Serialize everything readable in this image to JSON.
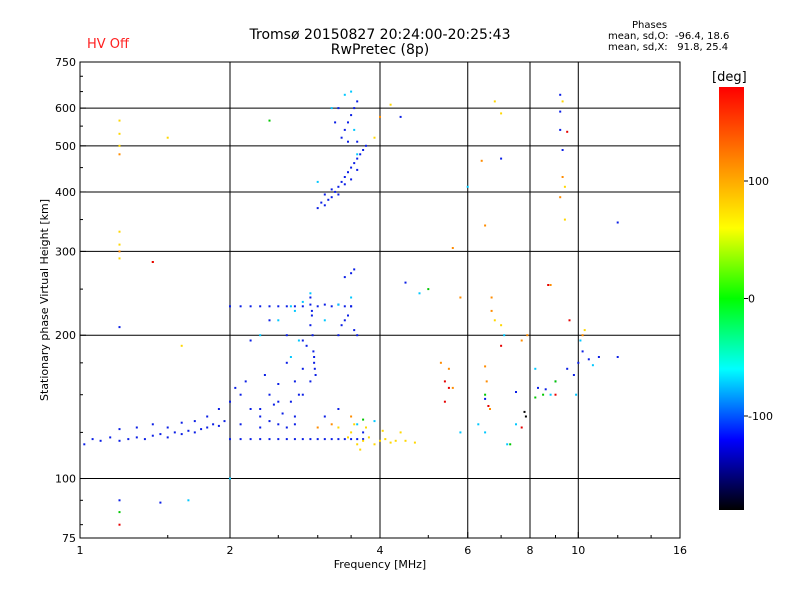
{
  "header": {
    "title_line1": "Tromsø 20150827 20:24:00-20:25:43",
    "title_line2": "RwPretec (8p)",
    "status": "HV Off",
    "status_color": "#ff2020"
  },
  "phases_box": {
    "heading": "Phases",
    "line_o": "mean, sd,O:  -96.4, 18.6",
    "line_x": "mean, sd,X:   91.8, 25.4"
  },
  "colorbar": {
    "unit": "[deg]",
    "ticks": [
      "100",
      "0",
      "-100"
    ],
    "tick_values": [
      100,
      0,
      -100
    ],
    "range": [
      -180,
      180
    ],
    "colors": [
      "#ff0000",
      "#ff8000",
      "#ffff00",
      "#00ff00",
      "#00ffff",
      "#0000ff",
      "#000000"
    ]
  },
  "chart_data": {
    "type": "scatter",
    "title": "Tromsø 20150827 20:24:00-20:25:43",
    "subtitle": "RwPretec (8p)",
    "xlabel": "Frequency [MHz]",
    "ylabel": "Stationary phase Virtual Height [km]",
    "x_scale": "log",
    "y_scale": "log",
    "xlim": [
      1,
      16
    ],
    "ylim": [
      75,
      750
    ],
    "x_ticks": [
      1,
      2,
      4,
      6,
      8,
      10,
      16
    ],
    "x_tick_labels": [
      "1",
      "2",
      "4",
      "6",
      "8",
      "10",
      "16"
    ],
    "y_ticks": [
      75,
      100,
      200,
      300,
      400,
      500,
      600,
      750
    ],
    "y_tick_labels": [
      "75",
      "100",
      "200",
      "300",
      "400",
      "500",
      "600",
      "750"
    ],
    "grid": true,
    "series": [
      {
        "color": "#0a1ee6",
        "points": [
          [
            1.02,
            118
          ],
          [
            1.06,
            121
          ],
          [
            1.1,
            120
          ],
          [
            1.15,
            122
          ],
          [
            1.2,
            120
          ],
          [
            1.25,
            121
          ],
          [
            1.3,
            122
          ],
          [
            1.35,
            121
          ],
          [
            1.4,
            123
          ],
          [
            1.45,
            124
          ],
          [
            1.5,
            122
          ],
          [
            1.55,
            125
          ],
          [
            1.6,
            124
          ],
          [
            1.65,
            126
          ],
          [
            1.7,
            125
          ],
          [
            1.75,
            127
          ],
          [
            1.8,
            128
          ],
          [
            1.85,
            130
          ],
          [
            1.9,
            129
          ],
          [
            1.95,
            132
          ],
          [
            2.0,
            121
          ],
          [
            2.1,
            121
          ],
          [
            2.2,
            121
          ],
          [
            2.3,
            121
          ],
          [
            2.4,
            121
          ],
          [
            2.5,
            121
          ],
          [
            2.6,
            121
          ],
          [
            2.7,
            121
          ],
          [
            2.8,
            121
          ],
          [
            2.9,
            121
          ],
          [
            3.0,
            121
          ],
          [
            3.1,
            121
          ],
          [
            3.2,
            121
          ],
          [
            3.3,
            121
          ],
          [
            3.4,
            121
          ],
          [
            3.5,
            121
          ],
          [
            3.6,
            121
          ],
          [
            3.7,
            121
          ],
          [
            1.2,
            127
          ],
          [
            1.3,
            128
          ],
          [
            1.4,
            130
          ],
          [
            1.5,
            128
          ],
          [
            1.6,
            131
          ],
          [
            1.7,
            132
          ],
          [
            1.8,
            135
          ],
          [
            1.9,
            140
          ],
          [
            2.0,
            145
          ],
          [
            2.05,
            155
          ],
          [
            2.1,
            150
          ],
          [
            2.15,
            160
          ],
          [
            2.2,
            140
          ],
          [
            2.3,
            135
          ],
          [
            2.35,
            165
          ],
          [
            2.4,
            150
          ],
          [
            2.45,
            143
          ],
          [
            2.5,
            158
          ],
          [
            2.55,
            137
          ],
          [
            2.6,
            175
          ],
          [
            2.65,
            145
          ],
          [
            2.7,
            160
          ],
          [
            2.75,
            150
          ],
          [
            2.8,
            170
          ],
          [
            2.85,
            190
          ],
          [
            2.9,
            210
          ],
          [
            2.92,
            225
          ],
          [
            2.95,
            180
          ],
          [
            2.97,
            165
          ],
          [
            2.8,
            150
          ],
          [
            2.7,
            135
          ],
          [
            2.6,
            128
          ],
          [
            2.5,
            130
          ],
          [
            2.4,
            132
          ],
          [
            2.3,
            128
          ],
          [
            2.0,
            230
          ],
          [
            2.1,
            230
          ],
          [
            2.2,
            230
          ],
          [
            2.3,
            230
          ],
          [
            2.4,
            230
          ],
          [
            2.5,
            230
          ],
          [
            2.6,
            230
          ],
          [
            2.7,
            230
          ],
          [
            2.8,
            230
          ],
          [
            2.9,
            232
          ],
          [
            3.0,
            230
          ],
          [
            3.1,
            232
          ],
          [
            3.2,
            230
          ],
          [
            3.3,
            232
          ],
          [
            3.4,
            230
          ],
          [
            3.5,
            230
          ],
          [
            2.9,
            240
          ],
          [
            2.92,
            220
          ],
          [
            2.93,
            200
          ],
          [
            2.94,
            185
          ],
          [
            2.95,
            175
          ],
          [
            2.96,
            170
          ],
          [
            2.9,
            160
          ],
          [
            3.3,
            200
          ],
          [
            3.35,
            210
          ],
          [
            3.4,
            215
          ],
          [
            3.45,
            220
          ],
          [
            3.5,
            230
          ],
          [
            3.55,
            205
          ],
          [
            3.6,
            200
          ],
          [
            3.4,
            265
          ],
          [
            3.5,
            270
          ],
          [
            3.55,
            275
          ],
          [
            3.0,
            370
          ],
          [
            3.05,
            380
          ],
          [
            3.1,
            375
          ],
          [
            3.15,
            385
          ],
          [
            3.2,
            390
          ],
          [
            3.25,
            400
          ],
          [
            3.3,
            410
          ],
          [
            3.35,
            420
          ],
          [
            3.4,
            430
          ],
          [
            3.45,
            440
          ],
          [
            3.5,
            450
          ],
          [
            3.55,
            460
          ],
          [
            3.6,
            470
          ],
          [
            3.65,
            480
          ],
          [
            3.7,
            490
          ],
          [
            3.75,
            500
          ],
          [
            3.1,
            395
          ],
          [
            3.2,
            405
          ],
          [
            3.3,
            395
          ],
          [
            3.4,
            415
          ],
          [
            3.5,
            425
          ],
          [
            3.6,
            445
          ],
          [
            3.35,
            520
          ],
          [
            3.4,
            540
          ],
          [
            3.45,
            560
          ],
          [
            3.5,
            580
          ],
          [
            3.55,
            600
          ],
          [
            3.6,
            620
          ],
          [
            3.25,
            560
          ],
          [
            3.3,
            600
          ],
          [
            3.45,
            510
          ],
          [
            3.6,
            510
          ],
          [
            4.4,
            575
          ],
          [
            4.5,
            258
          ],
          [
            7.0,
            470
          ],
          [
            9.2,
            640
          ],
          [
            9.2,
            590
          ],
          [
            9.2,
            540
          ],
          [
            9.3,
            490
          ],
          [
            12.0,
            345
          ],
          [
            1.2,
            208
          ],
          [
            1.2,
            90
          ],
          [
            1.45,
            89
          ],
          [
            6.5,
            147
          ],
          [
            7.5,
            152
          ],
          [
            8.3,
            155
          ],
          [
            8.6,
            154
          ],
          [
            9.0,
            160
          ],
          [
            9.5,
            170
          ],
          [
            10.0,
            175
          ],
          [
            10.5,
            178
          ],
          [
            11.0,
            180
          ],
          [
            12.0,
            180
          ],
          [
            9.8,
            165
          ],
          [
            10.2,
            185
          ],
          [
            2.1,
            130
          ],
          [
            2.3,
            140
          ],
          [
            2.5,
            145
          ],
          [
            2.7,
            130
          ],
          [
            3.1,
            135
          ],
          [
            3.3,
            140
          ],
          [
            3.7,
            125
          ],
          [
            2.2,
            195
          ],
          [
            2.4,
            215
          ],
          [
            2.6,
            200
          ],
          [
            2.8,
            195
          ]
        ]
      },
      {
        "color": "#00c8ff",
        "points": [
          [
            2.3,
            200
          ],
          [
            2.5,
            215
          ],
          [
            2.7,
            225
          ],
          [
            2.8,
            235
          ],
          [
            3.1,
            215
          ],
          [
            3.3,
            232
          ],
          [
            3.5,
            240
          ],
          [
            2.9,
            245
          ],
          [
            2.75,
            195
          ],
          [
            2.65,
            180
          ],
          [
            3.2,
            600
          ],
          [
            3.4,
            640
          ],
          [
            3.5,
            650
          ],
          [
            3.0,
            420
          ],
          [
            3.55,
            540
          ],
          [
            3.6,
            480
          ],
          [
            6.0,
            410
          ],
          [
            4.8,
            245
          ],
          [
            7.1,
            200
          ],
          [
            7.5,
            130
          ],
          [
            8.2,
            170
          ],
          [
            8.8,
            150
          ],
          [
            10.1,
            195
          ],
          [
            3.6,
            130
          ],
          [
            3.9,
            132
          ],
          [
            6.5,
            125
          ],
          [
            7.2,
            118
          ],
          [
            2.0,
            100
          ],
          [
            1.65,
            90
          ],
          [
            5.8,
            125
          ],
          [
            6.3,
            130
          ],
          [
            9.9,
            150
          ],
          [
            10.7,
            173
          ],
          [
            2.65,
            230
          ]
        ]
      },
      {
        "color": "#ffd700",
        "points": [
          [
            3.6,
            118
          ],
          [
            3.7,
            120
          ],
          [
            3.8,
            122
          ],
          [
            3.9,
            118
          ],
          [
            4.0,
            120
          ],
          [
            4.1,
            121
          ],
          [
            4.2,
            119
          ],
          [
            4.3,
            120
          ],
          [
            4.5,
            120
          ],
          [
            4.7,
            119
          ],
          [
            3.5,
            125
          ],
          [
            3.55,
            130
          ],
          [
            3.65,
            115
          ],
          [
            3.75,
            128
          ],
          [
            4.05,
            126
          ],
          [
            4.4,
            125
          ],
          [
            3.3,
            128
          ],
          [
            3.45,
            122
          ],
          [
            1.2,
            565
          ],
          [
            1.2,
            530
          ],
          [
            1.2,
            500
          ],
          [
            1.2,
            330
          ],
          [
            1.2,
            310
          ],
          [
            1.2,
            290
          ],
          [
            1.5,
            520
          ],
          [
            1.6,
            190
          ],
          [
            4.2,
            610
          ],
          [
            6.8,
            620
          ],
          [
            7.0,
            585
          ],
          [
            9.3,
            620
          ],
          [
            9.4,
            350
          ],
          [
            9.4,
            410
          ],
          [
            3.9,
            520
          ],
          [
            10.3,
            205
          ],
          [
            6.8,
            215
          ],
          [
            7.0,
            210
          ]
        ]
      },
      {
        "color": "#ff8c00",
        "points": [
          [
            1.2,
            480
          ],
          [
            1.4,
            285
          ],
          [
            1.2,
            300
          ],
          [
            6.4,
            465
          ],
          [
            6.5,
            340
          ],
          [
            6.7,
            240
          ],
          [
            6.7,
            225
          ],
          [
            8.8,
            255
          ],
          [
            9.3,
            430
          ],
          [
            5.6,
            305
          ],
          [
            5.5,
            170
          ],
          [
            7.7,
            195
          ],
          [
            10.2,
            200
          ],
          [
            6.5,
            172
          ],
          [
            6.55,
            160
          ],
          [
            6.65,
            140
          ],
          [
            5.6,
            155
          ],
          [
            5.3,
            175
          ],
          [
            7.9,
            200
          ],
          [
            9.2,
            390
          ],
          [
            3.2,
            130
          ],
          [
            3.0,
            128
          ],
          [
            3.5,
            135
          ],
          [
            4.0,
            575
          ],
          [
            5.8,
            240
          ]
        ]
      },
      {
        "color": "#00c800",
        "points": [
          [
            2.4,
            565
          ],
          [
            1.2,
            85
          ],
          [
            7.3,
            118
          ],
          [
            8.2,
            148
          ],
          [
            8.5,
            150
          ],
          [
            9.0,
            160
          ],
          [
            3.7,
            133
          ],
          [
            6.5,
            150
          ],
          [
            5.0,
            250
          ]
        ]
      },
      {
        "color": "#e60000",
        "points": [
          [
            1.4,
            285
          ],
          [
            5.4,
            160
          ],
          [
            5.4,
            145
          ],
          [
            6.6,
            142
          ],
          [
            7.0,
            190
          ],
          [
            7.7,
            128
          ],
          [
            8.7,
            255
          ],
          [
            9.0,
            150
          ],
          [
            9.5,
            535
          ],
          [
            9.6,
            215
          ],
          [
            5.5,
            155
          ],
          [
            1.2,
            80
          ]
        ]
      },
      {
        "color": "#000000",
        "points": [
          [
            7.85,
            135
          ],
          [
            7.8,
            138
          ]
        ]
      }
    ]
  }
}
